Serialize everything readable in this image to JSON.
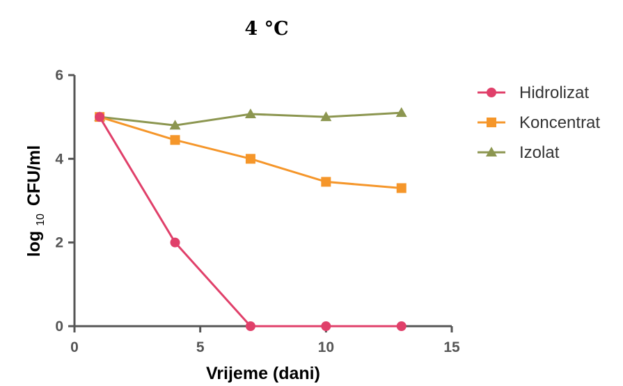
{
  "chart_data": {
    "type": "line",
    "title": "4 °C",
    "xlabel": "Vrijeme (dani)",
    "ylabel": "log",
    "ylabel_subscript": "10",
    "ylabel_suffix": "CFU/ml",
    "xlim": [
      0,
      15
    ],
    "ylim": [
      0,
      6
    ],
    "xticks": [
      0,
      5,
      10,
      15
    ],
    "yticks": [
      0,
      2,
      4,
      6
    ],
    "xtick_labels": [
      "0",
      "5",
      "10",
      "15"
    ],
    "ytick_labels": [
      "0",
      "2",
      "4",
      "6"
    ],
    "grid": false,
    "legend_position": "right",
    "x": [
      1,
      4,
      7,
      10,
      13
    ],
    "series": [
      {
        "name": "Hidrolizat",
        "marker": "circle",
        "color": "#e0406a",
        "values": [
          5.0,
          2.0,
          0.0,
          0.0,
          0.0
        ]
      },
      {
        "name": "Koncentrat",
        "marker": "square",
        "color": "#f5962a",
        "values": [
          5.0,
          4.45,
          4.0,
          3.45,
          3.3
        ]
      },
      {
        "name": "Izolat",
        "marker": "triangle",
        "color": "#8c9650",
        "values": [
          5.0,
          4.8,
          5.07,
          5.0,
          5.1
        ]
      }
    ]
  }
}
